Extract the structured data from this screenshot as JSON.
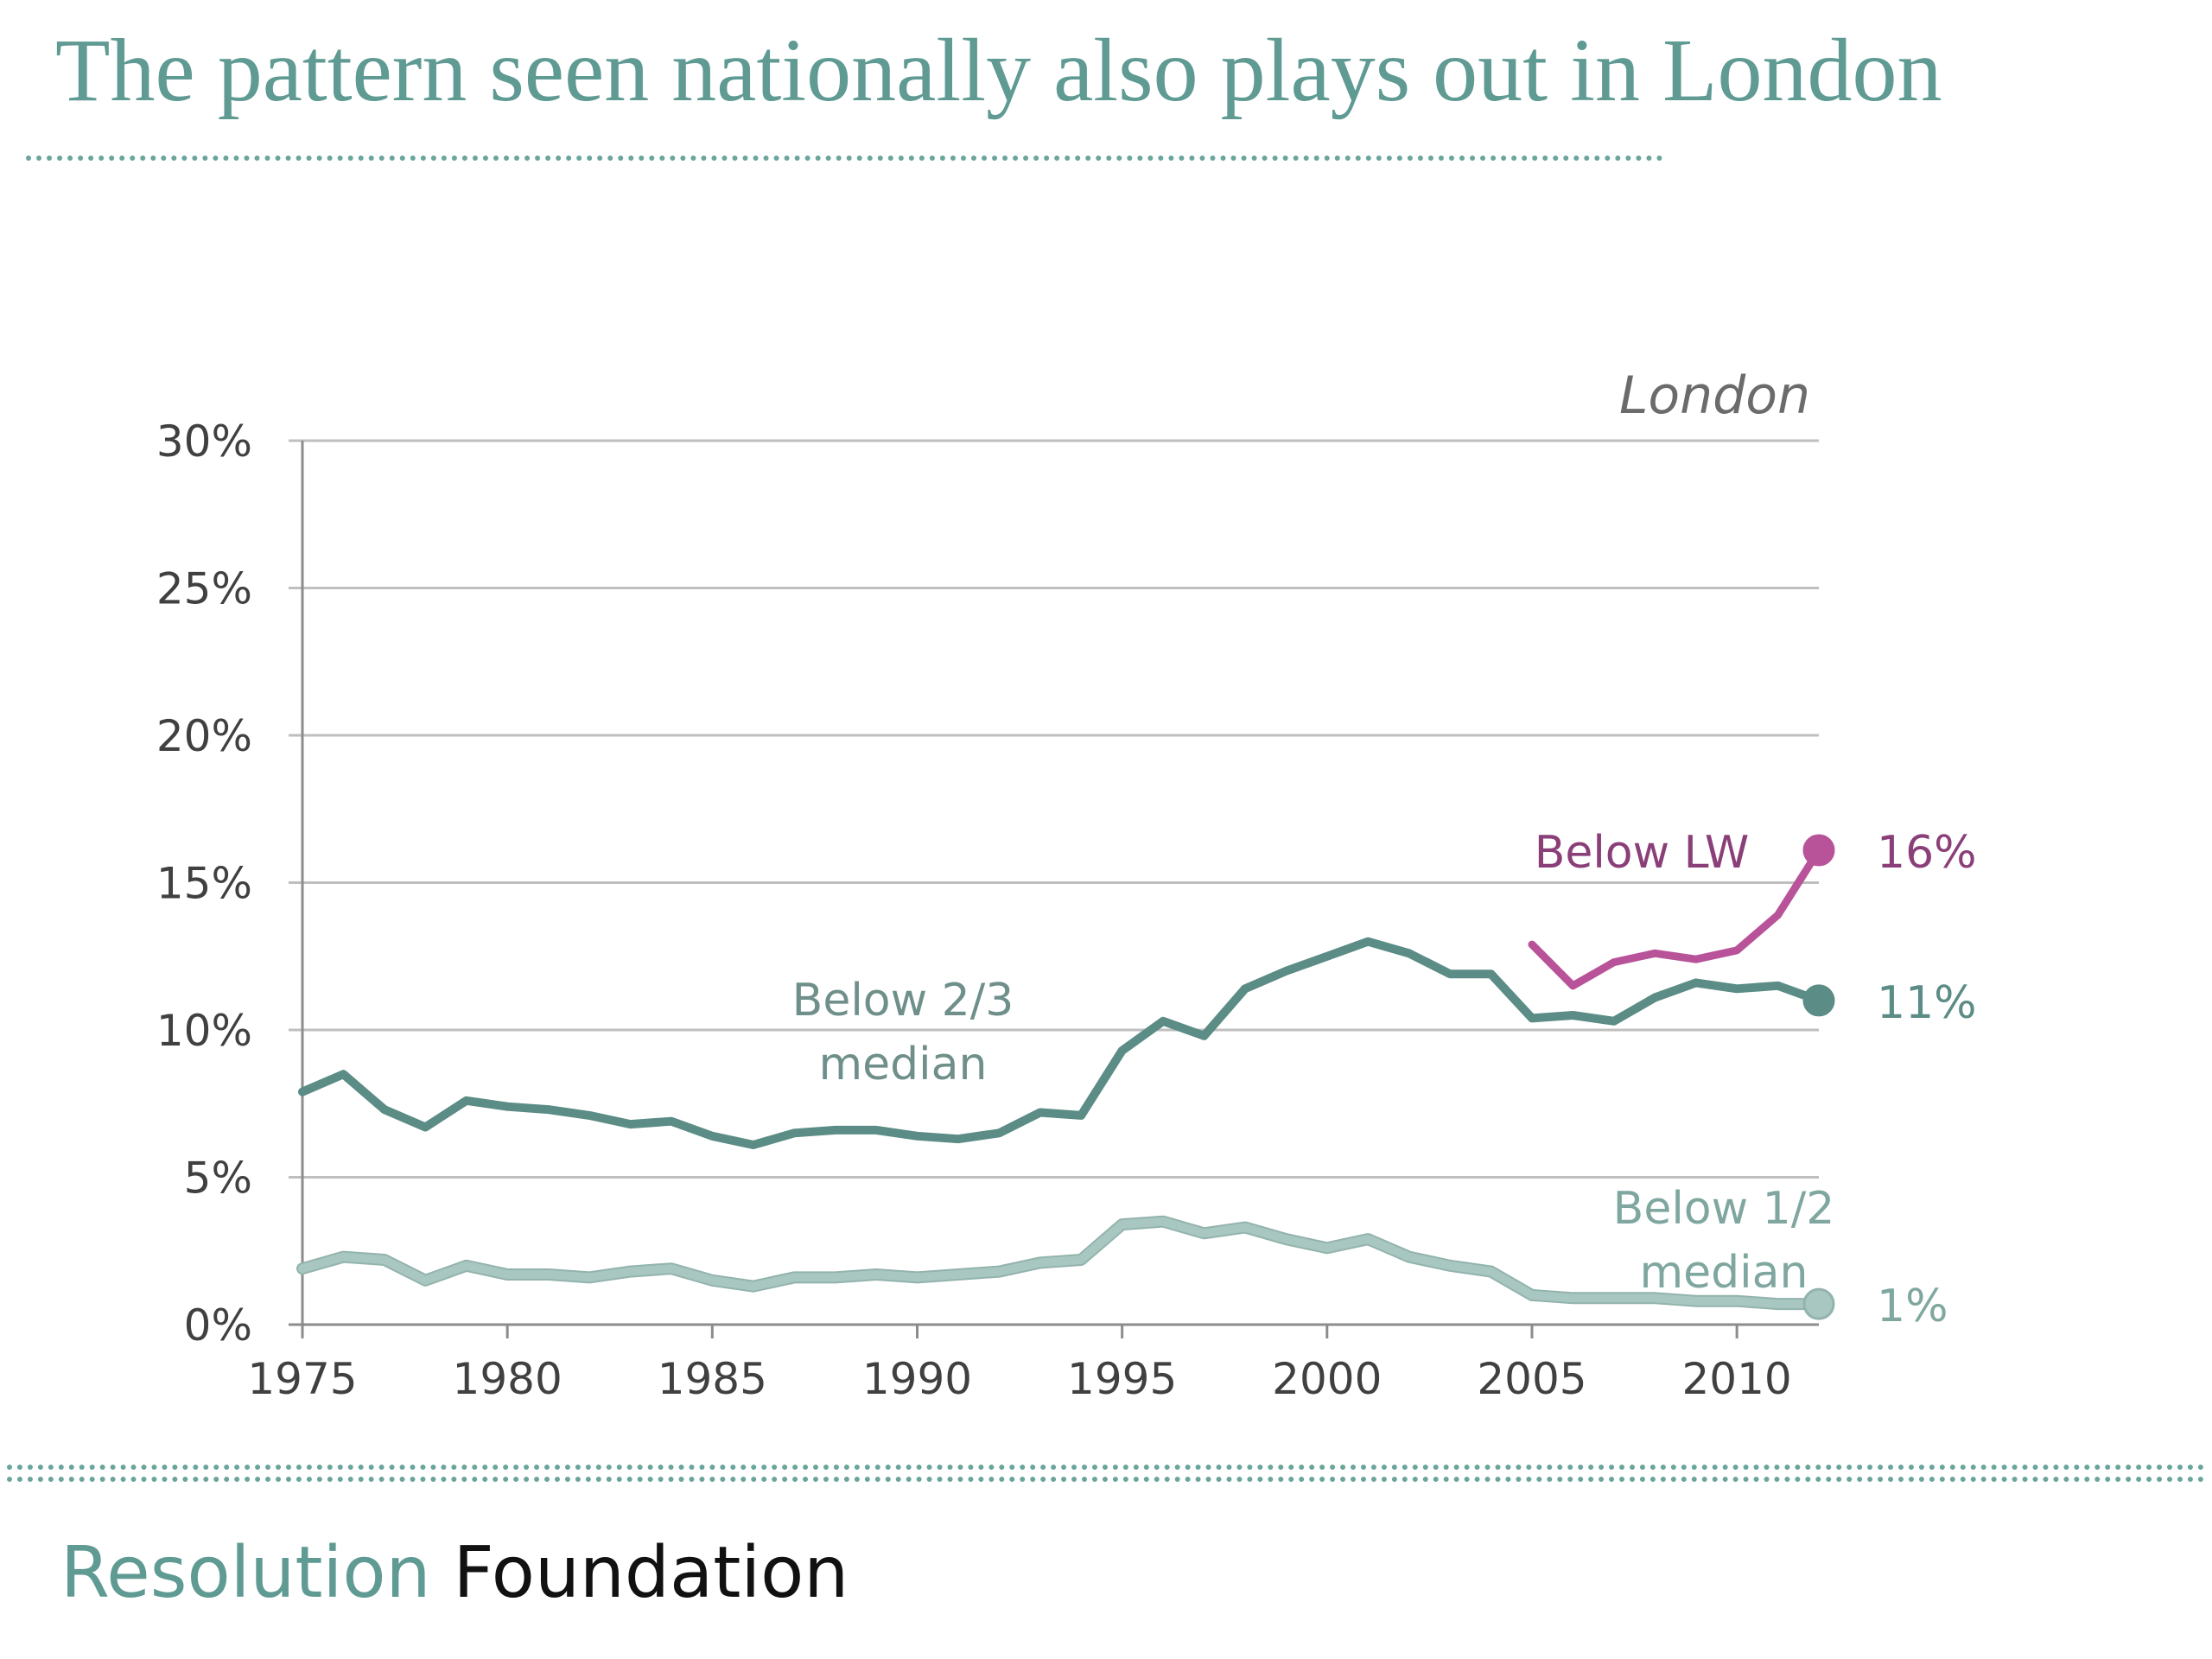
{
  "slide": {
    "title": "The pattern seen nationally also plays out in London"
  },
  "brand": {
    "part1": "Resolution",
    "part2": "Foundation"
  },
  "colors": {
    "title": "#5f9a93",
    "below_two_thirds": "#5b8c85",
    "below_half": "#a9c7c1",
    "below_lw": "#b8539a",
    "lw_label": "#8a3f79",
    "grid": "#bfbfbf"
  },
  "chart_data": {
    "type": "line",
    "title": "London",
    "xlabel": "",
    "ylabel": "",
    "xlim": [
      1975,
      2012
    ],
    "ylim": [
      0,
      30
    ],
    "xticks": [
      1975,
      1980,
      1985,
      1990,
      1995,
      2000,
      2005,
      2010
    ],
    "xtick_labels": [
      "1975",
      "1980",
      "1985",
      "1990",
      "1995",
      "2000",
      "2005",
      "2010"
    ],
    "yticks": [
      0,
      5,
      10,
      15,
      20,
      25,
      30
    ],
    "ytick_labels": [
      "0%",
      "5%",
      "10%",
      "15%",
      "20%",
      "25%",
      "30%"
    ],
    "grid": true,
    "series": [
      {
        "name": "Below 2/3 median",
        "label_lines": [
          "Below 2/3",
          "median"
        ],
        "end_label": "11%",
        "x": [
          1975,
          1976,
          1977,
          1978,
          1979,
          1980,
          1981,
          1982,
          1983,
          1984,
          1985,
          1986,
          1987,
          1988,
          1989,
          1990,
          1991,
          1992,
          1993,
          1994,
          1995,
          1996,
          1997,
          1998,
          1999,
          2000,
          2001,
          2002,
          2003,
          2004,
          2005,
          2006,
          2007,
          2008,
          2009,
          2010,
          2011,
          2012
        ],
        "values": [
          7.9,
          8.5,
          7.3,
          6.7,
          7.6,
          7.4,
          7.3,
          7.1,
          6.8,
          6.9,
          6.4,
          6.1,
          6.5,
          6.6,
          6.6,
          6.4,
          6.3,
          6.5,
          7.2,
          7.1,
          9.3,
          10.3,
          9.8,
          11.4,
          12.0,
          12.5,
          13.0,
          12.6,
          11.9,
          11.9,
          10.4,
          10.5,
          10.3,
          11.1,
          11.6,
          11.4,
          11.5,
          11.0
        ]
      },
      {
        "name": "Below 1/2 median",
        "label_lines": [
          "Below 1/2",
          "median"
        ],
        "end_label": "1%",
        "x": [
          1975,
          1976,
          1977,
          1978,
          1979,
          1980,
          1981,
          1982,
          1983,
          1984,
          1985,
          1986,
          1987,
          1988,
          1989,
          1990,
          1991,
          1992,
          1993,
          1994,
          1995,
          1996,
          1997,
          1998,
          1999,
          2000,
          2001,
          2002,
          2003,
          2004,
          2005,
          2006,
          2007,
          2008,
          2009,
          2010,
          2011,
          2012
        ],
        "values": [
          1.9,
          2.3,
          2.2,
          1.5,
          2.0,
          1.7,
          1.7,
          1.6,
          1.8,
          1.9,
          1.5,
          1.3,
          1.6,
          1.6,
          1.7,
          1.6,
          1.7,
          1.8,
          2.1,
          2.2,
          3.4,
          3.5,
          3.1,
          3.3,
          2.9,
          2.6,
          2.9,
          2.3,
          2.0,
          1.8,
          1.0,
          0.9,
          0.9,
          0.9,
          0.8,
          0.8,
          0.7,
          0.7
        ]
      },
      {
        "name": "Below LW",
        "label_lines": [
          "Below LW"
        ],
        "end_label": "16%",
        "x": [
          2005,
          2006,
          2007,
          2008,
          2009,
          2010,
          2011,
          2012
        ],
        "values": [
          12.9,
          11.5,
          12.3,
          12.6,
          12.4,
          12.7,
          13.9,
          16.1
        ]
      }
    ]
  }
}
